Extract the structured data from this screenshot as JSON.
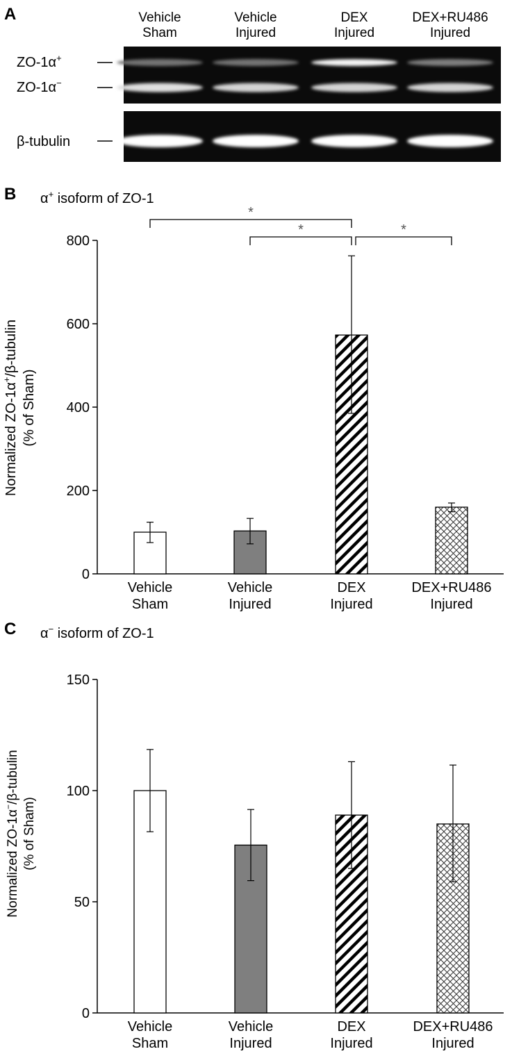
{
  "panel_a": {
    "letter": "A",
    "lanes": [
      {
        "line1": "Vehicle",
        "line2": "Sham"
      },
      {
        "line1": "Vehicle",
        "line2": "Injured"
      },
      {
        "line1": "DEX",
        "line2": "Injured"
      },
      {
        "line1": "DEX+RU486",
        "line2": "Injured"
      }
    ],
    "band_labels": {
      "alpha_plus_base": "ZO-1α",
      "alpha_plus_sup": "+",
      "alpha_minus_base": "ZO-1α",
      "alpha_minus_sup": "−",
      "tubulin": "β-tubulin"
    },
    "band_intensity": {
      "alpha_plus": [
        0.35,
        0.35,
        0.95,
        0.4
      ],
      "alpha_minus": [
        0.85,
        0.8,
        0.8,
        0.8
      ],
      "tubulin": [
        1,
        1,
        1,
        1
      ]
    }
  },
  "chart_data": [
    {
      "panel": "B",
      "type": "bar",
      "title_base": "α",
      "title_sup": "+",
      "title_rest": " isoform of ZO-1",
      "categories": [
        {
          "line1": "Vehicle",
          "line2": "Sham"
        },
        {
          "line1": "Vehicle",
          "line2": "Injured"
        },
        {
          "line1": "DEX",
          "line2": "Injured"
        },
        {
          "line1": "DEX+RU486",
          "line2": "Injured"
        }
      ],
      "values": [
        100,
        103,
        573,
        160
      ],
      "error_low": [
        75,
        72,
        385,
        149
      ],
      "error_high": [
        124,
        133,
        763,
        170
      ],
      "patterns": [
        "white",
        "gray",
        "diagonal",
        "crosshatch"
      ],
      "ylabel_line1_a": "Normalized ZO-1α",
      "ylabel_sup": "+",
      "ylabel_line1_b": "/β-tubulin",
      "ylabel_line2": "(% of Sham)",
      "ylim": [
        0,
        800
      ],
      "yticks": [
        "0",
        "200",
        "400",
        "600",
        "800"
      ],
      "significance": [
        {
          "from": 0,
          "to": 2,
          "label": "*"
        },
        {
          "from": 1,
          "to": 2,
          "label": "*"
        },
        {
          "from": 2,
          "to": 3,
          "label": "*"
        }
      ],
      "grid": false
    },
    {
      "panel": "C",
      "type": "bar",
      "title_base": "α",
      "title_sup": "−",
      "title_rest": " isoform of ZO-1",
      "categories": [
        {
          "line1": "Vehicle",
          "line2": "Sham"
        },
        {
          "line1": "Vehicle",
          "line2": "Injured"
        },
        {
          "line1": "DEX",
          "line2": "Injured"
        },
        {
          "line1": "DEX+RU486",
          "line2": "Injured"
        }
      ],
      "values": [
        100,
        75.5,
        89,
        85
      ],
      "error_low": [
        81.5,
        59.5,
        65,
        59
      ],
      "error_high": [
        118.5,
        91.5,
        113,
        111.5
      ],
      "patterns": [
        "white",
        "gray",
        "diagonal",
        "crosshatch"
      ],
      "ylabel_line1_a": "Normalized ZO-1α",
      "ylabel_sup": "−",
      "ylabel_line1_b": "/β-tubulin",
      "ylabel_line2": "(% of Sham)",
      "ylim": [
        0,
        150
      ],
      "yticks": [
        "0",
        "50",
        "100",
        "150"
      ],
      "significance": [],
      "grid": false
    }
  ]
}
